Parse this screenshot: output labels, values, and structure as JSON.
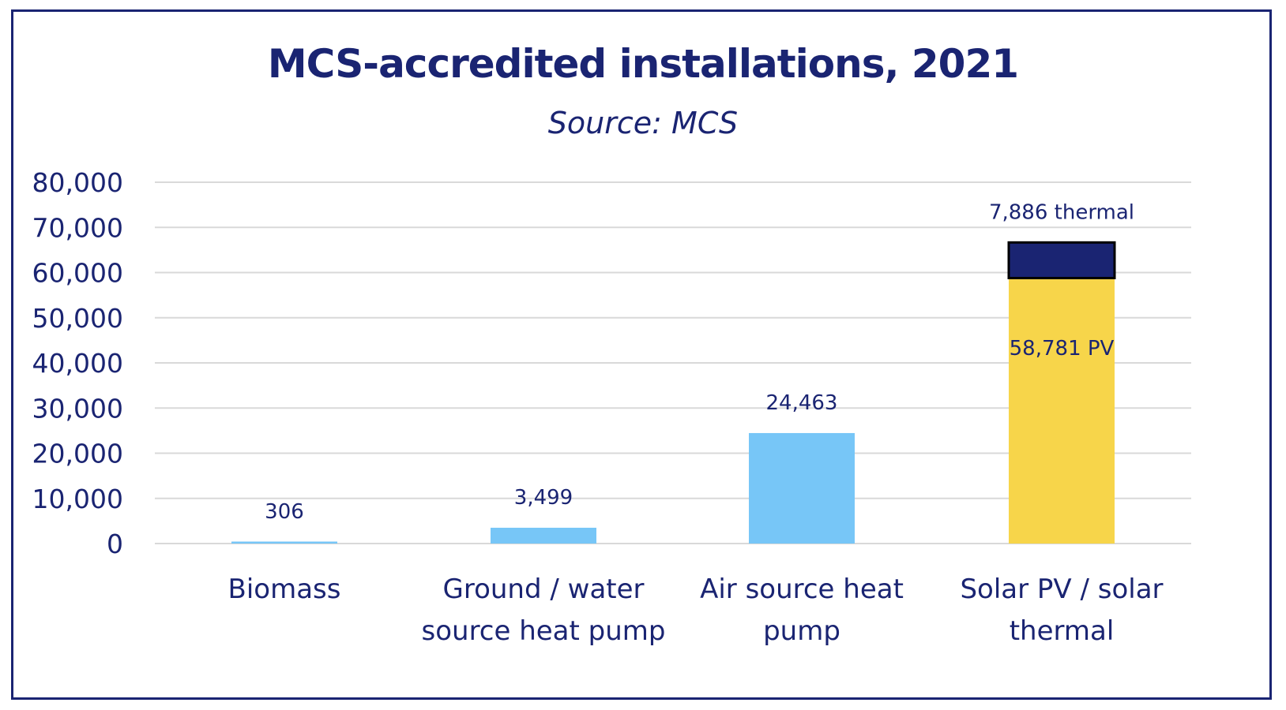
{
  "chart_data": {
    "type": "bar",
    "title": "MCS-accredited installations, 2021",
    "subtitle": "Source: MCS",
    "xlabel": "",
    "ylabel": "",
    "ylim": [
      0,
      80000
    ],
    "yticks": [
      0,
      10000,
      20000,
      30000,
      40000,
      50000,
      60000,
      70000,
      80000
    ],
    "ytick_labels": [
      "0",
      "10,000",
      "20,000",
      "30,000",
      "40,000",
      "50,000",
      "60,000",
      "70,000",
      "80,000"
    ],
    "grid": true,
    "legend": "none",
    "categories": [
      [
        "Biomass"
      ],
      [
        "Ground / water",
        "source heat pump"
      ],
      [
        "Air source heat",
        "pump"
      ],
      [
        "Solar PV / solar",
        "thermal"
      ]
    ],
    "bars": [
      {
        "segments": [
          {
            "value": 306,
            "color": "#77c6f7",
            "label": "306",
            "label_pos": "above"
          }
        ]
      },
      {
        "segments": [
          {
            "value": 3499,
            "color": "#77c6f7",
            "label": "3,499",
            "label_pos": "above"
          }
        ]
      },
      {
        "segments": [
          {
            "value": 24463,
            "color": "#77c6f7",
            "label": "24,463",
            "label_pos": "above"
          }
        ]
      },
      {
        "segments": [
          {
            "value": 58781,
            "color": "#f7d54a",
            "label": "58,781 PV",
            "label_pos": "inside"
          },
          {
            "value": 7886,
            "color": "#1a2472",
            "label": "7,886 thermal",
            "label_pos": "above",
            "outlined": true
          }
        ]
      }
    ],
    "colors": {
      "text": "#1a2472",
      "grid": "#d9d9d9",
      "frame": "#1a2472"
    }
  }
}
